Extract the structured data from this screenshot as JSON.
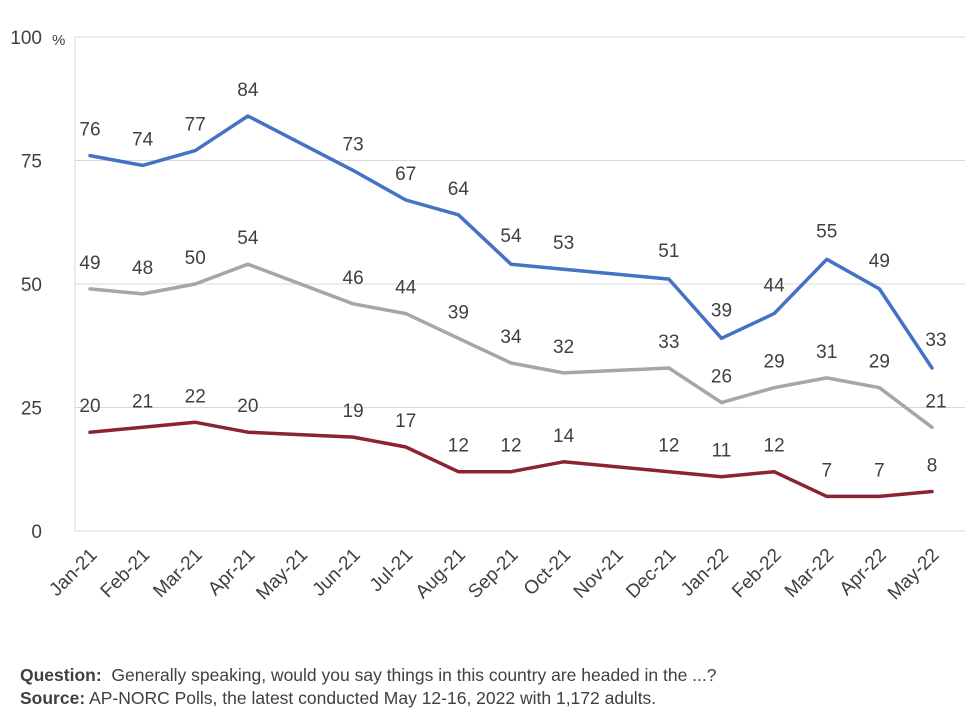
{
  "chart_data": {
    "type": "line",
    "categories": [
      "Jan-21",
      "Feb-21",
      "Mar-21",
      "Apr-21",
      "May-21",
      "Jun-21",
      "Jul-21",
      "Aug-21",
      "Sep-21",
      "Oct-21",
      "Nov-21",
      "Dec-21",
      "Jan-22",
      "Feb-22",
      "Mar-22",
      "Apr-22",
      "May-22"
    ],
    "series": [
      {
        "color": "#4472c4",
        "values": [
          76,
          74,
          77,
          84,
          null,
          73,
          67,
          64,
          54,
          53,
          null,
          51,
          39,
          44,
          55,
          49,
          33
        ]
      },
      {
        "color": "#a6a6a6",
        "values": [
          49,
          48,
          50,
          54,
          null,
          46,
          44,
          39,
          34,
          32,
          null,
          33,
          26,
          29,
          31,
          29,
          21
        ]
      },
      {
        "color": "#8b2332",
        "values": [
          20,
          21,
          22,
          20,
          null,
          19,
          17,
          12,
          12,
          14,
          null,
          12,
          11,
          12,
          7,
          7,
          8
        ]
      }
    ],
    "ylim": [
      0,
      100
    ],
    "yticks": [
      0,
      25,
      50,
      75,
      100
    ],
    "y_unit": "%",
    "grid": true
  },
  "footer": {
    "question_label": "Question:",
    "question_text": "Generally speaking, would you say things in this country are headed in the ...?",
    "source_label": "Source:",
    "source_text": "AP-NORC Polls, the latest conducted May 12-16, 2022 with 1,172 adults."
  }
}
